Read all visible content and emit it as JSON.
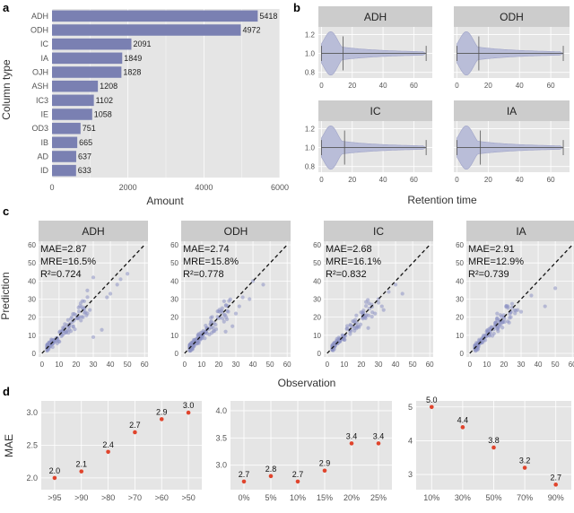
{
  "colors": {
    "panel": "#e5e5e5",
    "grid": "#ffffff",
    "strip": "#cccccc",
    "bar": "#7a80b2",
    "violin": "#b9bdd8",
    "point": "#8e93c4",
    "dot": "#e0442c",
    "text": "#333333",
    "tick": "#555555"
  },
  "chart_data": [
    {
      "panel": "a",
      "type": "bar",
      "orientation": "horizontal",
      "categories": [
        "ADH",
        "ODH",
        "IC",
        "IA",
        "OJH",
        "ASH",
        "IC3",
        "IE",
        "OD3",
        "IB",
        "AD",
        "ID"
      ],
      "values": [
        5418,
        4972,
        2091,
        1849,
        1828,
        1208,
        1102,
        1058,
        751,
        665,
        637,
        633
      ],
      "value_labels": [
        "5418",
        "4972",
        "2091",
        "1849",
        "1828",
        "1208",
        "1102",
        "1058",
        "751",
        "665",
        "637",
        "633"
      ],
      "xlabel": "Amount",
      "ylabel": "Column type",
      "xlim": [
        0,
        6000
      ],
      "xticks": [
        "0",
        "2000",
        "4000",
        "6000"
      ],
      "xtick_values": [
        0,
        2000,
        4000,
        6000
      ]
    },
    {
      "panel": "b",
      "type": "violin",
      "xlabel": "Retention time",
      "xlim": [
        -2,
        72
      ],
      "ylim": [
        0.74,
        1.28
      ],
      "xticks": [
        "0",
        "20",
        "40",
        "60"
      ],
      "xtick_values": [
        0,
        20,
        40,
        60
      ],
      "yticks": [
        "0.8",
        "1.0",
        "1.2"
      ],
      "ytick_values": [
        0.8,
        1.0,
        1.2
      ],
      "facets": [
        {
          "name": "ADH",
          "min": 0,
          "max": 68,
          "median": 14
        },
        {
          "name": "ODH",
          "min": 0,
          "max": 68,
          "median": 14
        },
        {
          "name": "IC",
          "min": 0,
          "max": 68,
          "median": 15
        },
        {
          "name": "IA",
          "min": 0,
          "max": 68,
          "median": 15
        }
      ]
    },
    {
      "panel": "c",
      "type": "scatter",
      "xlabel": "Observation",
      "ylabel": "Prediction",
      "xlim": [
        -2,
        62
      ],
      "ylim": [
        -2,
        62
      ],
      "xticks": [
        "0",
        "10",
        "20",
        "30",
        "40",
        "50",
        "60"
      ],
      "xtick_values": [
        0,
        10,
        20,
        30,
        40,
        50,
        60
      ],
      "yticks": [
        "0",
        "10",
        "20",
        "30",
        "40",
        "50",
        "60"
      ],
      "ytick_values": [
        0,
        10,
        20,
        30,
        40,
        50,
        60
      ],
      "facets": [
        {
          "name": "ADH",
          "mae": "MAE=2.87",
          "mre": "MRE=16.5%",
          "r2": "R²=0.724",
          "seed": 11,
          "n": 140,
          "spread": 0.26,
          "outliers": [
            [
              50,
              44
            ],
            [
              46,
              41
            ],
            [
              40,
              33
            ],
            [
              38,
              31
            ],
            [
              30,
              42
            ],
            [
              35,
              13
            ],
            [
              30,
              9
            ],
            [
              28,
              24
            ],
            [
              24,
              20
            ],
            [
              44,
              38
            ]
          ]
        },
        {
          "name": "ODH",
          "mae": "MAE=2.74",
          "mre": "MRE=15.8%",
          "r2": "R²=0.778",
          "seed": 23,
          "n": 160,
          "spread": 0.25,
          "outliers": [
            [
              46,
              38
            ],
            [
              40,
              40
            ],
            [
              38,
              30
            ],
            [
              34,
              31
            ],
            [
              32,
              26
            ],
            [
              30,
              22
            ],
            [
              28,
              15
            ],
            [
              26,
              29
            ],
            [
              22,
              25
            ],
            [
              24,
              12
            ]
          ]
        },
        {
          "name": "IC",
          "mae": "MAE=2.68",
          "mre": "MRE=16.1%",
          "r2": "R²=0.832",
          "seed": 37,
          "n": 120,
          "spread": 0.22,
          "outliers": [
            [
              44,
              33
            ],
            [
              40,
              38
            ],
            [
              36,
              34
            ],
            [
              33,
              24
            ],
            [
              32,
              26
            ],
            [
              30,
              28
            ],
            [
              30,
              30
            ],
            [
              28,
              22
            ],
            [
              26,
              27
            ],
            [
              24,
              14
            ]
          ]
        },
        {
          "name": "IA",
          "mae": "MAE=2.91",
          "mre": "MRE=12.9%",
          "r2": "R²=0.739",
          "seed": 51,
          "n": 120,
          "spread": 0.22,
          "outliers": [
            [
              50,
              36
            ],
            [
              44,
              26
            ],
            [
              36,
              32
            ],
            [
              30,
              23
            ],
            [
              28,
              24
            ],
            [
              24,
              20
            ],
            [
              23,
              17
            ],
            [
              20,
              20
            ],
            [
              18,
              16
            ],
            [
              16,
              22
            ]
          ]
        }
      ]
    },
    {
      "panel": "d",
      "type": "scatter",
      "ylabel": "MAE",
      "facets": [
        {
          "categories": [
            ">95",
            ">90",
            ">80",
            ">70",
            ">60",
            ">50"
          ],
          "values": [
            2.0,
            2.1,
            2.4,
            2.7,
            2.9,
            3.0
          ],
          "labels": [
            "2.0",
            "2.1",
            "2.4",
            "2.7",
            "2.9",
            "3.0"
          ],
          "ylim": [
            1.82,
            3.18
          ],
          "yticks": [
            "2.0",
            "2.5",
            "3.0"
          ],
          "ytick_values": [
            2.0,
            2.5,
            3.0
          ]
        },
        {
          "categories": [
            "0%",
            "5%",
            "10%",
            "15%",
            "20%",
            "25%"
          ],
          "values": [
            2.7,
            2.8,
            2.7,
            2.9,
            3.4,
            3.4
          ],
          "labels": [
            "2.7",
            "2.8",
            "2.7",
            "2.9",
            "3.4",
            "3.4"
          ],
          "ylim": [
            2.55,
            4.18
          ],
          "yticks": [
            "3.0",
            "3.5",
            "4.0"
          ],
          "ytick_values": [
            3.0,
            3.5,
            4.0
          ]
        },
        {
          "categories": [
            "10%",
            "30%",
            "50%",
            "70%",
            "90%"
          ],
          "values": [
            5.0,
            4.4,
            3.8,
            3.2,
            2.7
          ],
          "labels": [
            "5.0",
            "4.4",
            "3.8",
            "3.2",
            "2.7"
          ],
          "ylim": [
            2.55,
            5.18
          ],
          "yticks": [
            "3",
            "4",
            "5"
          ],
          "ytick_values": [
            3,
            4,
            5
          ]
        }
      ]
    }
  ],
  "panel_letters": {
    "a": "a",
    "b": "b",
    "c": "c",
    "d": "d"
  }
}
